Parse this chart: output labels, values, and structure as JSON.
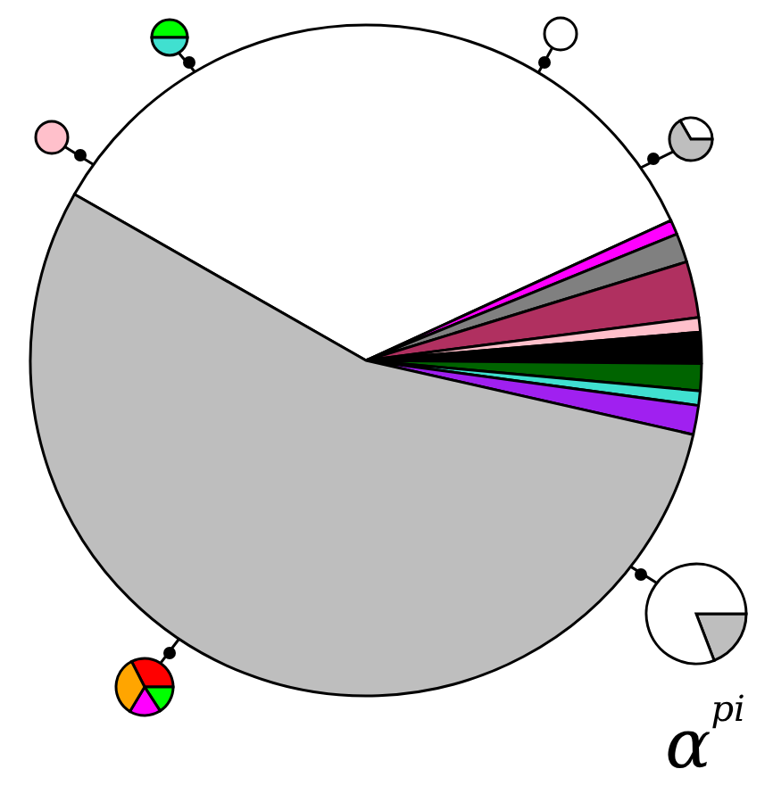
{
  "chart_data": {
    "type": "pie",
    "title": "α$^{pi}$",
    "categories": [
      null,
      null,
      null,
      null,
      null,
      null,
      null,
      null,
      null,
      null
    ],
    "values": [
      34.9,
      0.7,
      1.4,
      2.7,
      0.7,
      1.5,
      1.3,
      0.7,
      1.4,
      54.7
    ],
    "colors": [
      "#ffffff",
      "#ff00ff",
      "#808080",
      "#b03060",
      "#ffc0cb",
      "#000000",
      "#006400",
      "#40e0d0",
      "#a020f0",
      "#bebebe"
    ]
  }
}
